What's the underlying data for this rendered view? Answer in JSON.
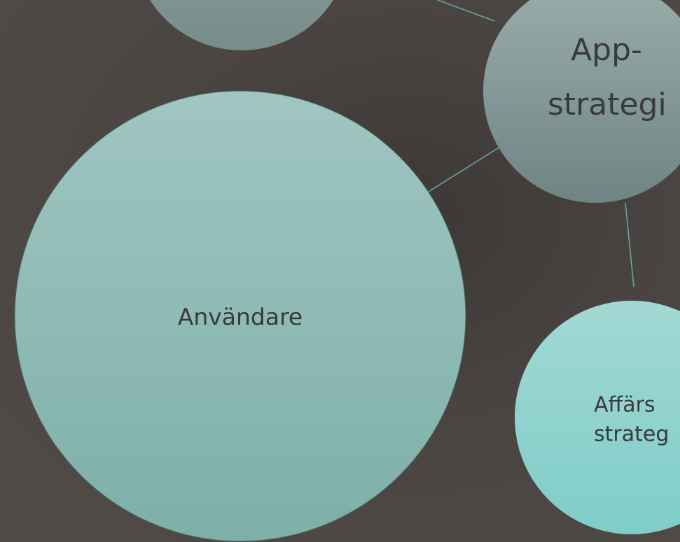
{
  "nodes": [
    {
      "lines": []
    },
    {
      "lines": [
        "App-",
        "strategi"
      ]
    },
    {
      "lines": [
        "Användare"
      ]
    },
    {
      "lines": [
        "Affärs",
        "strateg"
      ]
    }
  ]
}
